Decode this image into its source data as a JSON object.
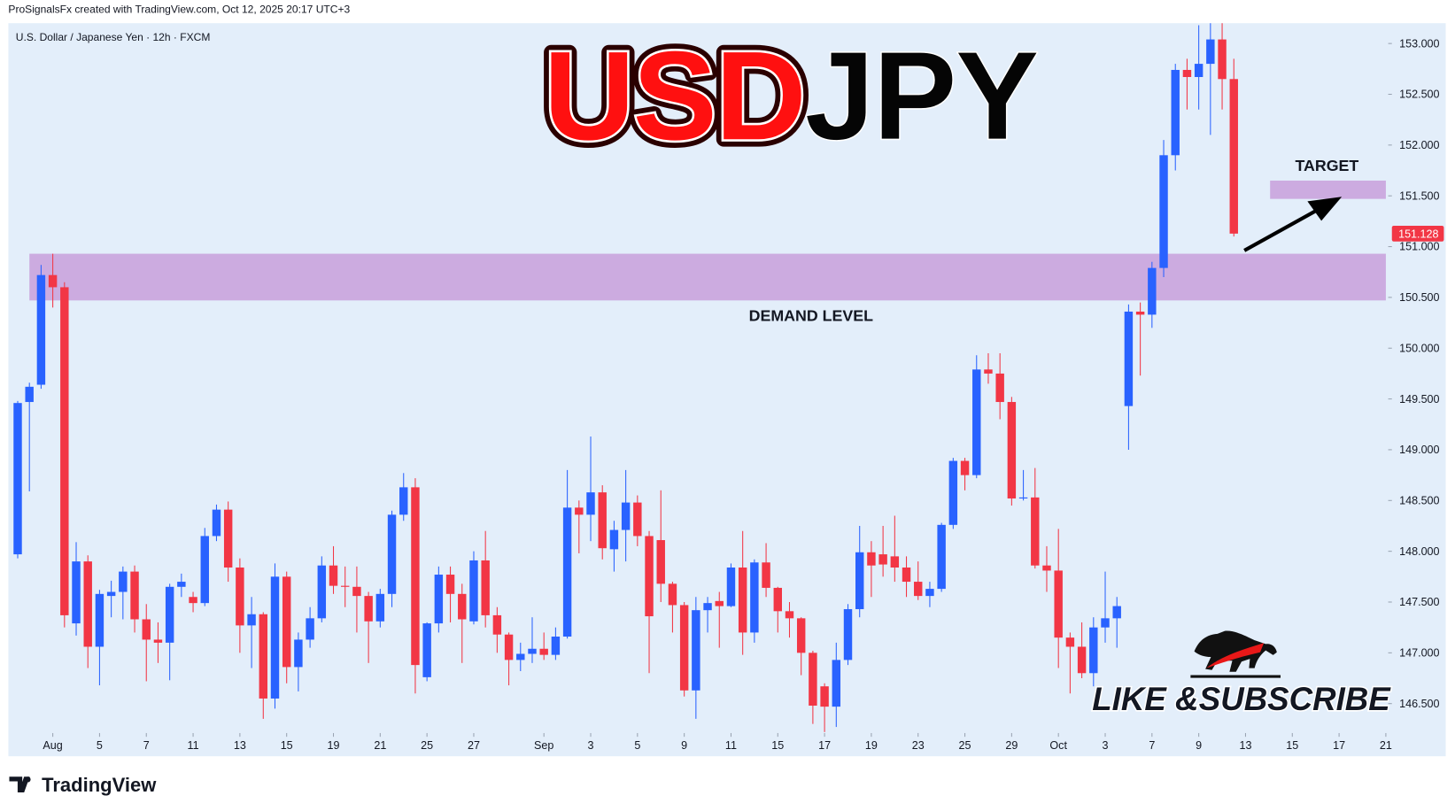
{
  "header": {
    "attribution": "ProSignalsFx created with TradingView.com, Oct 12, 2025 20:17 UTC+3",
    "symbol": "U.S. Dollar / Japanese Yen · 12h · FXCM"
  },
  "chart_data": {
    "type": "candlestick",
    "title": [
      "USD",
      "JPY"
    ],
    "up_color": "#2962ff",
    "down_color": "#f23645",
    "grid": false,
    "open": [
      147.97,
      149.47,
      149.64,
      150.72,
      150.6,
      147.29,
      147.9,
      147.06,
      147.56,
      147.6,
      147.8,
      147.33,
      147.13,
      147.1,
      147.65,
      147.55,
      147.49,
      148.15,
      148.41,
      147.84,
      147.27,
      147.38,
      146.55,
      147.75,
      146.86,
      147.13,
      147.34,
      147.86,
      147.66,
      147.65,
      147.56,
      147.31,
      147.58,
      148.36,
      148.63,
      146.76,
      147.29,
      147.77,
      147.58,
      147.31,
      147.91,
      147.37,
      147.18,
      146.93,
      146.99,
      147.04,
      146.98,
      147.16,
      148.43,
      148.36,
      148.58,
      148.02,
      148.21,
      148.48,
      148.15,
      148.11,
      147.68,
      147.47,
      146.63,
      147.42,
      147.51,
      147.46,
      147.84,
      147.2,
      147.89,
      147.64,
      147.41,
      147.34,
      147.0,
      146.67,
      146.47,
      146.93,
      147.43,
      147.99,
      147.97,
      147.95,
      147.84,
      147.7,
      147.56,
      147.63,
      148.26,
      148.89,
      148.75,
      149.79,
      149.75,
      149.47,
      148.52,
      148.53,
      147.86,
      147.81,
      147.15,
      147.06,
      146.8,
      147.25,
      147.34,
      149.43,
      150.36,
      150.33,
      150.79,
      151.9,
      152.74,
      152.67,
      152.8,
      153.04,
      152.65
    ],
    "high": [
      149.48,
      149.66,
      150.82,
      150.93,
      150.65,
      148.09,
      147.96,
      147.62,
      147.71,
      147.85,
      147.86,
      147.48,
      147.3,
      147.68,
      147.78,
      147.6,
      148.23,
      148.46,
      148.49,
      147.93,
      147.55,
      147.4,
      147.88,
      147.8,
      147.2,
      147.45,
      147.95,
      148.05,
      147.85,
      147.85,
      147.6,
      147.63,
      148.4,
      148.77,
      148.72,
      147.3,
      147.85,
      147.85,
      147.68,
      148.0,
      148.2,
      147.45,
      147.2,
      147.1,
      147.35,
      147.2,
      147.25,
      148.8,
      148.5,
      149.13,
      148.65,
      148.3,
      148.8,
      148.55,
      148.2,
      148.6,
      147.7,
      147.5,
      147.55,
      147.55,
      147.6,
      147.88,
      148.2,
      147.92,
      148.08,
      147.65,
      147.5,
      147.35,
      147.02,
      146.7,
      147.1,
      147.48,
      148.25,
      148.1,
      148.25,
      148.35,
      147.95,
      147.9,
      147.7,
      148.28,
      148.92,
      148.92,
      149.93,
      149.95,
      149.95,
      149.52,
      148.8,
      148.82,
      148.05,
      148.22,
      147.2,
      147.3,
      147.35,
      147.8,
      147.55,
      150.43,
      150.45,
      150.85,
      152.05,
      152.8,
      152.85,
      153.18,
      153.2,
      153.2,
      152.85
    ],
    "low": [
      147.93,
      148.59,
      149.6,
      150.4,
      147.25,
      147.17,
      146.85,
      146.68,
      147.35,
      147.33,
      147.2,
      146.72,
      146.9,
      146.73,
      147.55,
      147.4,
      147.46,
      148.1,
      147.7,
      147.0,
      146.85,
      146.35,
      146.45,
      146.7,
      146.62,
      147.05,
      147.3,
      147.58,
      147.45,
      147.2,
      146.9,
      147.25,
      147.45,
      148.3,
      146.6,
      146.72,
      147.2,
      147.3,
      146.9,
      147.28,
      147.25,
      147.0,
      146.68,
      146.82,
      146.9,
      146.93,
      146.93,
      147.14,
      147.98,
      148.1,
      147.92,
      147.8,
      147.9,
      148.05,
      146.8,
      147.5,
      147.2,
      146.57,
      146.35,
      147.2,
      147.05,
      147.45,
      146.98,
      147.1,
      147.55,
      147.2,
      147.15,
      146.78,
      146.3,
      146.22,
      146.27,
      146.88,
      147.35,
      147.55,
      147.75,
      147.7,
      147.55,
      147.52,
      147.45,
      147.6,
      148.22,
      148.6,
      148.72,
      149.65,
      149.3,
      148.45,
      148.5,
      147.83,
      147.6,
      146.85,
      146.6,
      146.75,
      146.67,
      147.1,
      147.05,
      149.0,
      149.73,
      150.2,
      150.7,
      151.75,
      152.35,
      152.35,
      152.1,
      152.35,
      151.1
    ],
    "close": [
      149.46,
      149.62,
      150.72,
      150.6,
      147.37,
      147.9,
      147.06,
      147.58,
      147.6,
      147.8,
      147.33,
      147.13,
      147.1,
      147.65,
      147.7,
      147.49,
      148.15,
      148.41,
      147.84,
      147.27,
      147.38,
      146.55,
      147.75,
      146.86,
      147.13,
      147.34,
      147.86,
      147.66,
      147.65,
      147.56,
      147.31,
      147.58,
      148.36,
      148.63,
      146.88,
      147.29,
      147.77,
      147.58,
      147.33,
      147.91,
      147.37,
      147.18,
      146.93,
      146.99,
      147.04,
      146.98,
      147.16,
      148.43,
      148.36,
      148.58,
      148.03,
      148.21,
      148.48,
      148.15,
      147.36,
      147.68,
      147.47,
      146.63,
      147.42,
      147.49,
      147.46,
      147.84,
      147.2,
      147.89,
      147.64,
      147.41,
      147.34,
      147.0,
      146.48,
      146.47,
      146.93,
      147.43,
      147.99,
      147.86,
      147.87,
      147.84,
      147.7,
      147.56,
      147.63,
      148.26,
      148.89,
      148.75,
      149.79,
      149.75,
      149.47,
      148.52,
      148.53,
      147.86,
      147.81,
      147.15,
      147.06,
      146.8,
      147.25,
      147.34,
      147.46,
      150.36,
      150.33,
      150.79,
      151.9,
      152.74,
      152.67,
      152.8,
      153.04,
      152.65,
      151.128
    ],
    "xlim": [
      -0.8,
      117.2
    ],
    "xticks": [
      {
        "value": 3,
        "label": "Aug"
      },
      {
        "value": 7,
        "label": "5"
      },
      {
        "value": 11,
        "label": "7"
      },
      {
        "value": 15,
        "label": "11"
      },
      {
        "value": 19,
        "label": "13"
      },
      {
        "value": 23,
        "label": "15"
      },
      {
        "value": 27,
        "label": "19"
      },
      {
        "value": 31,
        "label": "21"
      },
      {
        "value": 35,
        "label": "25"
      },
      {
        "value": 39,
        "label": "27"
      },
      {
        "value": 45,
        "label": "Sep"
      },
      {
        "value": 49,
        "label": "3"
      },
      {
        "value": 53,
        "label": "5"
      },
      {
        "value": 57,
        "label": "9"
      },
      {
        "value": 61,
        "label": "11"
      },
      {
        "value": 65,
        "label": "15"
      },
      {
        "value": 69,
        "label": "17"
      },
      {
        "value": 73,
        "label": "19"
      },
      {
        "value": 77,
        "label": "23"
      },
      {
        "value": 81,
        "label": "25"
      },
      {
        "value": 85,
        "label": "29"
      },
      {
        "value": 89,
        "label": "Oct"
      },
      {
        "value": 93,
        "label": "3"
      },
      {
        "value": 97,
        "label": "7"
      },
      {
        "value": 101,
        "label": "9"
      },
      {
        "value": 105,
        "label": "13"
      },
      {
        "value": 109,
        "label": "15"
      },
      {
        "value": 113,
        "label": "17"
      },
      {
        "value": 117,
        "label": "21"
      }
    ],
    "ylim": [
      146.21,
      153.2
    ],
    "yticks": [
      {
        "value": 146.5,
        "label": "146.500"
      },
      {
        "value": 147,
        "label": "147.000"
      },
      {
        "value": 147.5,
        "label": "147.500"
      },
      {
        "value": 148,
        "label": "148.000"
      },
      {
        "value": 148.5,
        "label": "148.500"
      },
      {
        "value": 149,
        "label": "149.000"
      },
      {
        "value": 149.5,
        "label": "149.500"
      },
      {
        "value": 150,
        "label": "150.000"
      },
      {
        "value": 150.5,
        "label": "150.500"
      },
      {
        "value": 151,
        "label": "151.000"
      },
      {
        "value": 151.5,
        "label": "151.500"
      },
      {
        "value": 152,
        "label": "152.000"
      },
      {
        "value": 152.5,
        "label": "152.500"
      },
      {
        "value": 153,
        "label": "153.000"
      }
    ],
    "last_price": 151.128,
    "zones": [
      {
        "label": "DEMAND LEVEL",
        "color": "#ccabe0",
        "ylim": [
          150.47,
          150.93
        ],
        "xlim": [
          1.0,
          117.0
        ]
      },
      {
        "label": "TARGET",
        "color": "#ccabe0",
        "ylim": [
          151.47,
          151.65
        ],
        "xlim": [
          107.1,
          117.0
        ]
      }
    ]
  },
  "promo": {
    "like": "LIKE &",
    "subscribe": "SUBSCRIBE"
  },
  "footer": {
    "brand": "TradingView"
  }
}
